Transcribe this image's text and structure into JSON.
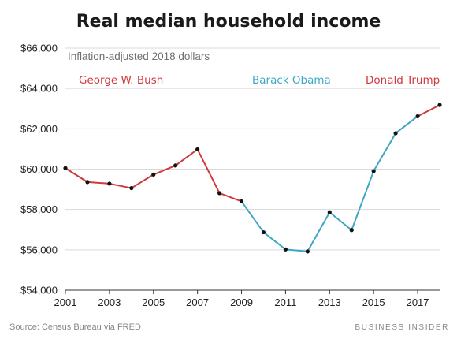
{
  "chart_data": {
    "type": "line",
    "title": "Real median household income",
    "subtitle": "Inflation-adjusted 2018 dollars",
    "xlabel": "",
    "ylabel": "",
    "xlim": [
      2001,
      2018
    ],
    "ylim": [
      54000,
      66000
    ],
    "grid": true,
    "x_ticks": [
      {
        "value": 2001,
        "label": "2001"
      },
      {
        "value": 2003,
        "label": "2003"
      },
      {
        "value": 2005,
        "label": "2005"
      },
      {
        "value": 2007,
        "label": "2007"
      },
      {
        "value": 2009,
        "label": "2009"
      },
      {
        "value": 2011,
        "label": "2011"
      },
      {
        "value": 2013,
        "label": "2013"
      },
      {
        "value": 2015,
        "label": "2015"
      },
      {
        "value": 2017,
        "label": "2017"
      }
    ],
    "y_ticks": [
      {
        "value": 54000,
        "label": "$54,000"
      },
      {
        "value": 56000,
        "label": "$56,000"
      },
      {
        "value": 58000,
        "label": "$58,000"
      },
      {
        "value": 60000,
        "label": "$60,000"
      },
      {
        "value": 62000,
        "label": "$62,000"
      },
      {
        "value": 64000,
        "label": "$64,000"
      },
      {
        "value": 66000,
        "label": "$66,000"
      }
    ],
    "series": [
      {
        "name": "George W. Bush",
        "color": "#d0393b",
        "x": [
          2001,
          2002,
          2003,
          2004,
          2005,
          2006,
          2007,
          2008,
          2009
        ],
        "values": [
          60050,
          59360,
          59280,
          59060,
          59730,
          60180,
          60980,
          58810,
          58400
        ]
      },
      {
        "name": "Barack Obama",
        "color": "#3fa7c6",
        "x": [
          2009,
          2010,
          2011,
          2012,
          2013,
          2014,
          2015,
          2016,
          2017
        ],
        "values": [
          58400,
          56870,
          56020,
          55920,
          57860,
          56980,
          59900,
          61780,
          62620
        ]
      },
      {
        "name": "Donald Trump",
        "color": "#d0393b",
        "x": [
          2017,
          2018
        ],
        "values": [
          62620,
          63180
        ]
      }
    ],
    "source": "Source: Census Bureau via FRED",
    "brand": "BUSINESS INSIDER"
  }
}
